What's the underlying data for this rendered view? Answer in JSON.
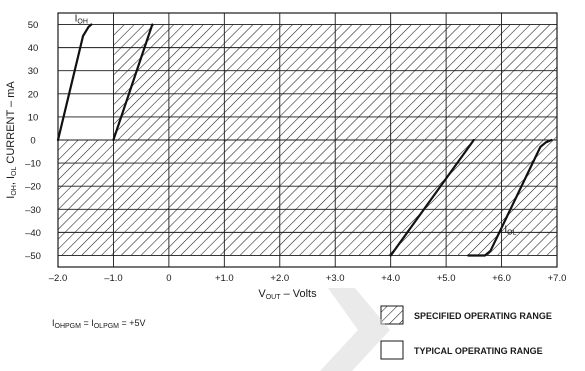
{
  "chart_data": {
    "type": "line",
    "xlabel": {
      "main": "V",
      "sub": "OUT",
      "rest": " – Volts"
    },
    "ylabel": {
      "parts": [
        [
          "I",
          ""
        ],
        [
          "OH",
          "sub"
        ],
        [
          ", I",
          ""
        ],
        [
          "OL",
          "sub"
        ],
        [
          " CURRENT – mA",
          ""
        ]
      ]
    },
    "xlim": [
      -2.0,
      7.0
    ],
    "ylim": [
      -55,
      55
    ],
    "x_ticks": [
      -2.0,
      -1.0,
      0,
      1.0,
      2.0,
      3.0,
      4.0,
      5.0,
      6.0,
      7.0
    ],
    "x_tick_labels": [
      "–2.0",
      "–1.0",
      "0",
      "+1.0",
      "+2.0",
      "+3.0",
      "+4.0",
      "+5.0",
      "+6.0",
      "+7.0"
    ],
    "y_ticks": [
      50,
      40,
      30,
      20,
      10,
      0,
      -10,
      -20,
      -30,
      -40,
      -50
    ],
    "y_tick_labels": [
      "50",
      "40",
      "30",
      "20",
      "10",
      "0",
      "–10",
      "–20",
      "–30",
      "–40",
      "–50"
    ],
    "grid": true,
    "specified_regions": [
      {
        "x": [
          -1.0,
          7.0
        ],
        "y": [
          0,
          50
        ]
      },
      {
        "x": [
          -2.0,
          7.0
        ],
        "y": [
          -50,
          0
        ]
      }
    ],
    "series": [
      {
        "name": "IOH",
        "label_main": "I",
        "label_sub": "OH",
        "x": [
          -2.0,
          -1.55,
          -1.45,
          -1.4
        ],
        "y": [
          0,
          45,
          49,
          50
        ]
      },
      {
        "name": "IOH",
        "x": [
          -1.0,
          -0.3
        ],
        "y": [
          0,
          50
        ]
      },
      {
        "name": "IOL",
        "x": [
          4.0,
          5.5
        ],
        "y": [
          -50,
          0
        ]
      },
      {
        "name": "IOL",
        "label_main": "I",
        "label_sub": "OL",
        "x": [
          5.4,
          5.7,
          5.8,
          6.7,
          6.8,
          6.9
        ],
        "y": [
          -50,
          -50,
          -48,
          -3,
          -1,
          0
        ]
      }
    ],
    "legend": [
      {
        "label": "SPECIFIED OPERATING RANGE",
        "style": "hatched"
      },
      {
        "label": "TYPICAL OPERATING RANGE",
        "style": "blank"
      }
    ],
    "legend_position": "bottom-right",
    "annotation": {
      "parts": [
        [
          "I",
          ""
        ],
        [
          "OHPGM",
          "sub"
        ],
        [
          " = I",
          ""
        ],
        [
          "OLPGM",
          "sub"
        ],
        [
          " = +5V",
          ""
        ]
      ]
    }
  }
}
